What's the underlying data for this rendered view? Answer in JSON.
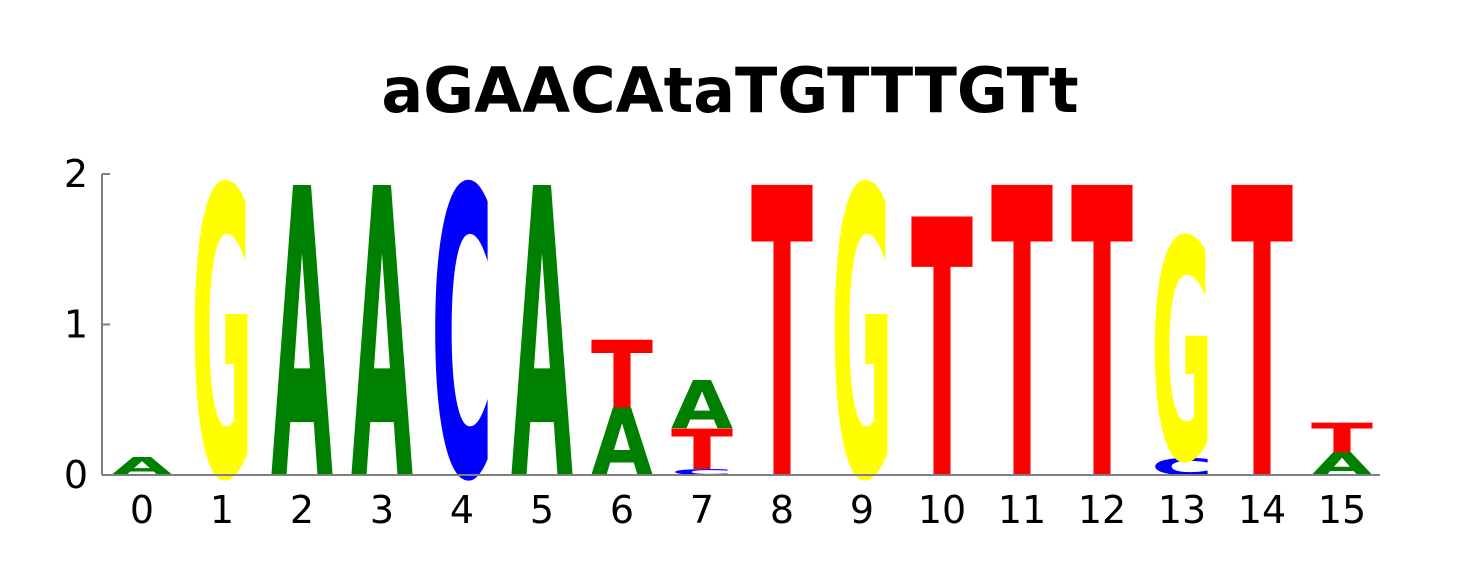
{
  "chart_data": {
    "type": "sequence-logo",
    "title": "aGAACAtaTGTTTGTt",
    "x": [
      "0",
      "1",
      "2",
      "3",
      "4",
      "5",
      "6",
      "7",
      "8",
      "9",
      "10",
      "11",
      "12",
      "13",
      "14",
      "15"
    ],
    "y_ticks": [
      "0",
      "1",
      "2"
    ],
    "ylim": [
      0,
      2
    ],
    "grid": false,
    "letter_colors": {
      "A": "#008000",
      "C": "#0000ff",
      "G": "#ffff00",
      "T": "#ff0000"
    },
    "positions": [
      [
        {
          "base": "A",
          "height": 0.12
        }
      ],
      [
        {
          "base": "G",
          "height": 1.93
        }
      ],
      [
        {
          "base": "A",
          "height": 1.93
        }
      ],
      [
        {
          "base": "A",
          "height": 1.93
        }
      ],
      [
        {
          "base": "C",
          "height": 1.93
        }
      ],
      [
        {
          "base": "A",
          "height": 1.93
        }
      ],
      [
        {
          "base": "A",
          "height": 0.45
        },
        {
          "base": "T",
          "height": 0.45
        }
      ],
      [
        {
          "base": "C",
          "height": 0.04
        },
        {
          "base": "T",
          "height": 0.27
        },
        {
          "base": "A",
          "height": 0.32
        }
      ],
      [
        {
          "base": "T",
          "height": 1.93
        }
      ],
      [
        {
          "base": "G",
          "height": 1.93
        }
      ],
      [
        {
          "base": "T",
          "height": 1.72
        }
      ],
      [
        {
          "base": "T",
          "height": 1.93
        }
      ],
      [
        {
          "base": "T",
          "height": 1.93
        }
      ],
      [
        {
          "base": "C",
          "height": 0.11
        },
        {
          "base": "G",
          "height": 1.47
        }
      ],
      [
        {
          "base": "T",
          "height": 1.93
        }
      ],
      [
        {
          "base": "A",
          "height": 0.15
        },
        {
          "base": "T",
          "height": 0.2
        }
      ]
    ]
  }
}
